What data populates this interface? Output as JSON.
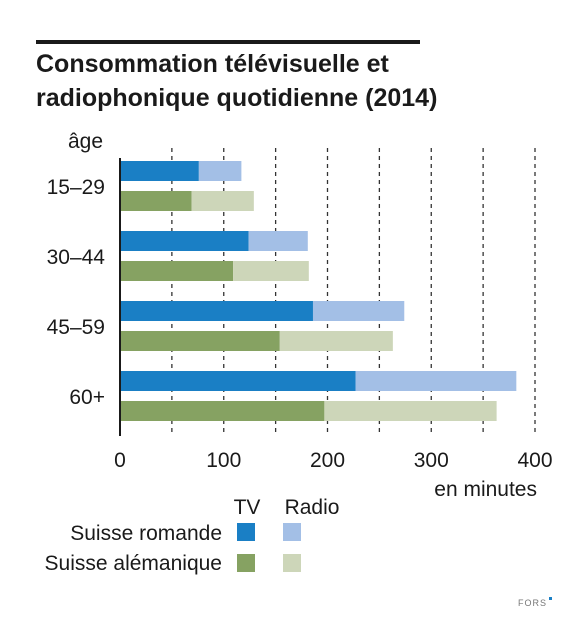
{
  "chart_data": {
    "type": "bar",
    "orientation": "horizontal",
    "stacked": true,
    "title": "Consommation télévisuelle et radiophonique quotidienne (2014)",
    "title_lines": [
      "Consommation télévisuelle et",
      "radiophonique quotidienne (2014)"
    ],
    "ylabel": "âge",
    "xlabel": "en minutes",
    "xlim": [
      0,
      400
    ],
    "xticks": [
      "0",
      "100",
      "200",
      "300",
      "400"
    ],
    "xtick_values": [
      0,
      100,
      200,
      300,
      400
    ],
    "gridlines": [
      50,
      100,
      150,
      200,
      250,
      300,
      350,
      400
    ],
    "grid": "vertical dashed",
    "categories": [
      "15–29",
      "30–44",
      "45–59",
      "60+"
    ],
    "groups": [
      {
        "name": "Suisse romande",
        "tv": [
          76,
          124,
          186,
          227
        ],
        "radio": [
          41,
          57,
          88,
          155
        ],
        "tv_color": "#1a7fc5",
        "radio_color": "#a3bfe6"
      },
      {
        "name": "Suisse alémanique",
        "tv": [
          69,
          109,
          154,
          197
        ],
        "radio": [
          60,
          73,
          109,
          166
        ],
        "tv_color": "#86a262",
        "radio_color": "#cdd6b9"
      }
    ],
    "legend": {
      "column_headers": [
        "TV",
        "Radio"
      ],
      "rows": [
        "Suisse romande",
        "Suisse alémanique"
      ],
      "placement": "bottom"
    }
  },
  "brand": "FORS",
  "brand_accent_color": "#1a7fc5"
}
